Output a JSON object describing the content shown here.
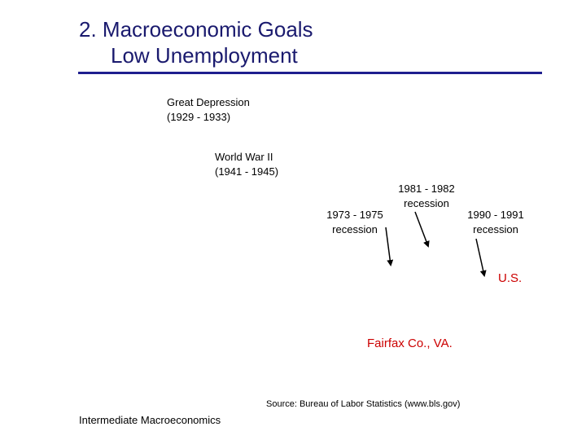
{
  "slide": {
    "title_line1": "2.  Macroeconomic Goals",
    "title_line2": "Low Unemployment"
  },
  "annotations": {
    "great_depression": {
      "line1": "Great Depression",
      "line2": "(1929 - 1933)"
    },
    "world_war_ii": {
      "line1": "World War II",
      "line2": "(1941 - 1945)"
    },
    "recession_1973": {
      "line1": "1973 - 1975",
      "line2": "recession"
    },
    "recession_1981": {
      "line1": "1981 - 1982",
      "line2": "recession"
    },
    "recession_1990": {
      "line1": "1990 - 1991",
      "line2": "recession"
    },
    "us_label": "U.S.",
    "fairfax_label": "Fairfax Co., VA."
  },
  "colors": {
    "title": "#1a1a6e",
    "rule": "#1f1f8f",
    "series_label": "#cc0000"
  },
  "footer": {
    "source": "Source: Bureau of Labor Statistics (www.bls.gov)",
    "course": "Intermediate Macroeconomics"
  }
}
